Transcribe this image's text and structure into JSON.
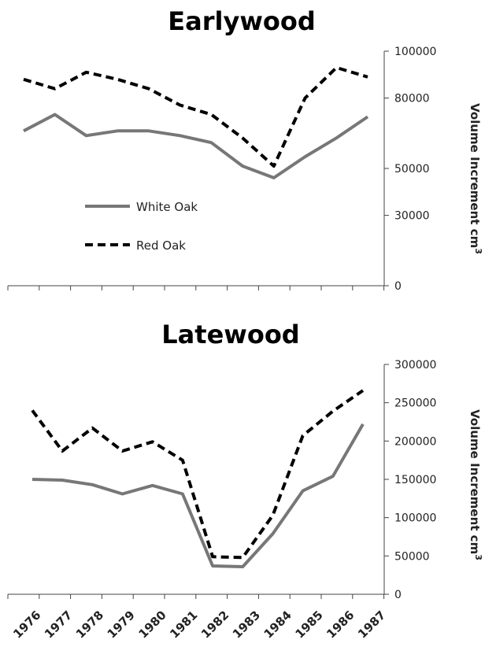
{
  "chart_data": [
    {
      "type": "line",
      "title": "Earlywood",
      "ylabel": "Volume Increment cm",
      "ylabel_sup": "3",
      "ylim": [
        0,
        100000
      ],
      "yticks": [
        "0",
        "30000",
        "50000",
        "80000",
        "100000"
      ],
      "ytick_values": [
        0,
        30000,
        50000,
        80000,
        100000
      ],
      "categories": [
        "1976",
        "1977",
        "1978",
        "1979",
        "1980",
        "1981",
        "1982",
        "1983",
        "1984",
        "1985",
        "1986",
        "1987"
      ],
      "legend": "center-left",
      "grid": false,
      "series": [
        {
          "name": "White Oak",
          "style": "solid",
          "color": "#777777",
          "values": [
            66000,
            73000,
            64000,
            66000,
            66000,
            64000,
            61000,
            51000,
            46000,
            55000,
            63000,
            72000
          ]
        },
        {
          "name": "Red Oak",
          "style": "dashed",
          "color": "#000000",
          "values": [
            88000,
            84000,
            91000,
            88000,
            84000,
            77000,
            73000,
            63000,
            51000,
            80000,
            93000,
            89000
          ]
        }
      ]
    },
    {
      "type": "line",
      "title": "Latewood",
      "ylabel": "Volume Increment cm",
      "ylabel_sup": "3",
      "ylim": [
        0,
        300000
      ],
      "yticks": [
        "0",
        "50000",
        "100000",
        "150000",
        "200000",
        "250000",
        "300000"
      ],
      "ytick_values": [
        0,
        50000,
        100000,
        150000,
        200000,
        250000,
        300000
      ],
      "xlabels": [
        "1976",
        "1977",
        "1978",
        "1979",
        "1980",
        "1981",
        "1982",
        "1983",
        "1984",
        "1985",
        "1986",
        "1987"
      ],
      "categories": [
        "1976",
        "1977",
        "1978",
        "1979",
        "1980",
        "1981",
        "1982",
        "1983",
        "1984",
        "1985",
        "1986",
        "1987"
      ],
      "grid": false,
      "series": [
        {
          "name": "White Oak",
          "style": "solid",
          "color": "#777777",
          "values": [
            150000,
            149000,
            143000,
            131000,
            142000,
            131000,
            37000,
            36000,
            79000,
            135000,
            154000,
            222000
          ]
        },
        {
          "name": "Red Oak",
          "style": "dashed",
          "color": "#000000",
          "values": [
            240000,
            187000,
            217000,
            187000,
            199000,
            175000,
            49000,
            48000,
            103000,
            207000,
            239000,
            266000
          ]
        }
      ]
    }
  ]
}
